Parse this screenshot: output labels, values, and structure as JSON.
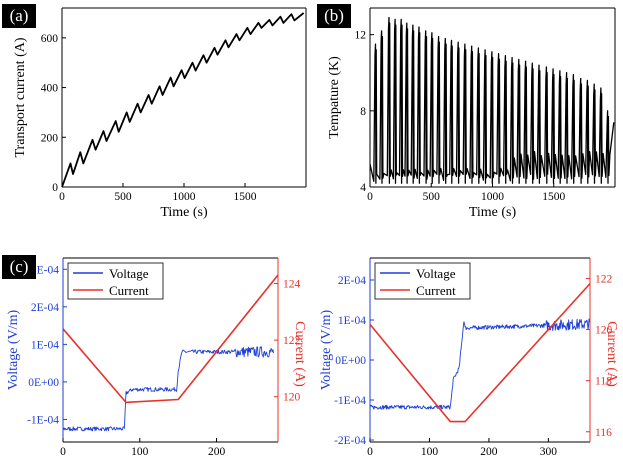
{
  "chart_data": [
    {
      "panel": "(a)",
      "type": "line",
      "xlabel": "Time (s)",
      "ylabel": "Transport current (A)",
      "xlim": [
        0,
        2000
      ],
      "ylim": [
        0,
        720
      ],
      "xticks": [
        0,
        500,
        1000,
        1500
      ],
      "yticks": [
        0,
        200,
        400,
        600
      ],
      "series": [
        {
          "color": "#000000",
          "x": [
            0,
            70,
            90,
            150,
            175,
            250,
            275,
            340,
            365,
            440,
            465,
            530,
            555,
            620,
            645,
            710,
            735,
            800,
            825,
            890,
            915,
            980,
            1005,
            1070,
            1095,
            1160,
            1185,
            1250,
            1275,
            1340,
            1365,
            1430,
            1455,
            1520,
            1545,
            1610,
            1635,
            1700,
            1725,
            1790,
            1815,
            1880,
            1905,
            1980
          ],
          "y": [
            0,
            95,
            52,
            140,
            95,
            190,
            150,
            225,
            185,
            265,
            222,
            300,
            262,
            335,
            300,
            370,
            335,
            405,
            370,
            440,
            405,
            470,
            438,
            500,
            468,
            530,
            500,
            560,
            532,
            590,
            562,
            615,
            590,
            640,
            615,
            660,
            640,
            672,
            650,
            685,
            660,
            695,
            670,
            700
          ]
        }
      ]
    },
    {
      "panel": "(b)",
      "type": "line",
      "xlabel": "Time (s)",
      "ylabel": "Tempature (K)",
      "xlim": [
        0,
        2000
      ],
      "ylim": [
        4,
        13.4
      ],
      "xticks": [
        0,
        500,
        1000,
        1500
      ],
      "yticks": [
        4,
        8,
        12
      ],
      "series": [
        {
          "color": "#000000",
          "peaks_x": [
            45,
            95,
            155,
            205,
            255,
            300,
            350,
            400,
            455,
            505,
            560,
            615,
            665,
            720,
            775,
            830,
            885,
            940,
            995,
            1050,
            1105,
            1160,
            1215,
            1270,
            1325,
            1380,
            1440,
            1495,
            1550,
            1605,
            1660,
            1720,
            1775,
            1830,
            1885,
            1940
          ],
          "peaks_y": [
            11.5,
            12.2,
            12.9,
            12.8,
            12.8,
            12.6,
            12.5,
            12.4,
            12.2,
            12.1,
            11.9,
            11.8,
            11.7,
            11.6,
            11.5,
            11.4,
            11.3,
            11.2,
            11.1,
            11.0,
            10.9,
            10.8,
            10.7,
            10.6,
            10.5,
            10.4,
            10.3,
            10.2,
            10.1,
            10.0,
            9.9,
            9.7,
            9.6,
            9.4,
            9.2,
            8.0
          ],
          "baseline": 4.3
        }
      ]
    },
    {
      "panel": "(c)",
      "type": "line",
      "xlim": [
        0,
        280
      ],
      "xticks": [
        0,
        100,
        200
      ],
      "ylabel": "Voltage (V/m)",
      "ylim": [
        -0.00016,
        0.00033
      ],
      "yticks": [
        -0.0001,
        0,
        0.0001,
        0.0002,
        0.0003
      ],
      "ytick_labels": [
        "-1E-04",
        "0E+00",
        "1E-04",
        "2E-04",
        "3E-04"
      ],
      "y2label": "Current (A)",
      "y2lim": [
        118.4,
        124.9
      ],
      "y2ticks": [
        120,
        122,
        124
      ],
      "legend": [
        "Voltage",
        "Current"
      ],
      "series": [
        {
          "name": "Voltage",
          "color": "#1f3fd9",
          "x": [
            0,
            80,
            82,
            90,
            148,
            150,
            155,
            275
          ],
          "y": [
            -0.000125,
            -0.000125,
            -3e-05,
            -2e-05,
            -2e-05,
            3e-05,
            8e-05,
            8e-05
          ]
        },
        {
          "name": "Current",
          "color": "#e8312a",
          "x": [
            0,
            82,
            150,
            280
          ],
          "y": [
            122.4,
            119.8,
            119.9,
            124.3
          ]
        }
      ]
    },
    {
      "panel": "(c)",
      "type": "line",
      "xlim": [
        0,
        370
      ],
      "xticks": [
        0,
        100,
        200,
        300
      ],
      "ylabel": "Voltage (V/m)",
      "ylim": [
        -0.000205,
        0.000255
      ],
      "yticks": [
        -0.0002,
        -0.0001,
        0,
        0.0001,
        0.0002
      ],
      "ytick_labels": [
        "-2E-04",
        "-1E-04",
        "0E+00",
        "1E-04",
        "2E-04"
      ],
      "y2label": "Current (A)",
      "y2lim": [
        115.6,
        122.8
      ],
      "y2ticks": [
        116,
        118,
        120,
        122
      ],
      "legend": [
        "Voltage",
        "Current"
      ],
      "series": [
        {
          "name": "Voltage",
          "color": "#1f3fd9",
          "x": [
            0,
            135,
            140,
            150,
            158,
            160,
            370
          ],
          "y": [
            -0.000118,
            -0.000118,
            -5e-05,
            -2e-05,
            0.0001,
            8e-05,
            9e-05
          ]
        },
        {
          "name": "Current",
          "color": "#e8312a",
          "x": [
            0,
            135,
            160,
            370
          ],
          "y": [
            120.2,
            116.4,
            116.4,
            121.8
          ]
        }
      ]
    }
  ]
}
